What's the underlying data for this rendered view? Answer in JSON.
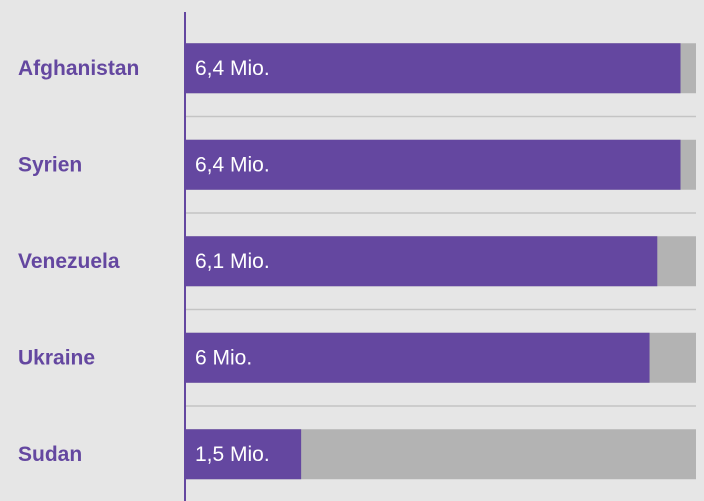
{
  "chart_data": {
    "type": "bar",
    "categories": [
      "Afghanistan",
      "Syrien",
      "Venezuela",
      "Ukraine",
      "Sudan"
    ],
    "values": [
      6.4,
      6.4,
      6.1,
      6,
      1.5
    ],
    "value_labels": [
      "6,4 Mio.",
      "6,4 Mio.",
      "6,1 Mio.",
      "6 Mio.",
      "1,5 Mio."
    ],
    "color": "#6447a0",
    "xlim": [
      0,
      6.6
    ]
  }
}
